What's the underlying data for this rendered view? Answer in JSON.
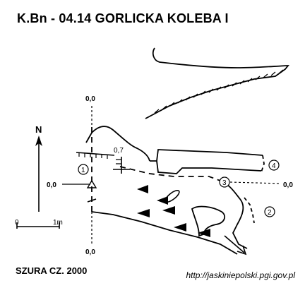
{
  "title": "K.Bn - 04.14  GORLICKA KOLEBA  I",
  "author": "SZURA CZ. 2000",
  "source_url": "http://jaskiniepolski.pgi.gov.pl",
  "north_label": "N",
  "scale": {
    "start": "0",
    "end": "1m"
  },
  "datum_labels": {
    "top": "0,0",
    "left": "0,0",
    "right": "0,0",
    "bottom": "0,0",
    "ceiling_height": "0,7"
  },
  "sections": [
    "1",
    "2",
    "3",
    "4"
  ]
}
